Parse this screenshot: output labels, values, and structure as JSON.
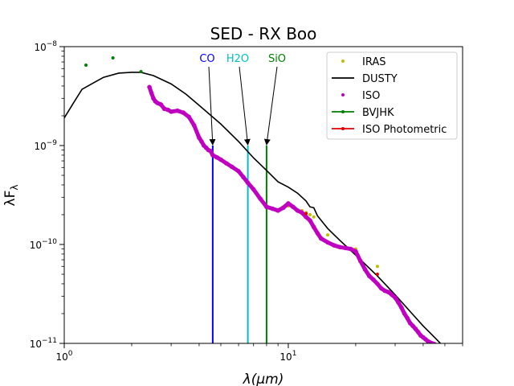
{
  "chart_data": {
    "type": "scatter",
    "title": "SED - RX Boo",
    "xlabel": "λ(μm)",
    "ylabel": "λF",
    "ylabel_sub": "λ",
    "xscale": "log",
    "yscale": "log",
    "xlim": [
      1,
      60
    ],
    "ylim": [
      1e-11,
      1e-08
    ],
    "x_ticks": [
      {
        "value": 1,
        "base": "10",
        "exp": "0"
      },
      {
        "value": 10,
        "base": "10",
        "exp": "1"
      }
    ],
    "y_ticks": [
      {
        "value": 1e-11,
        "base": "10",
        "exp": "−11"
      },
      {
        "value": 1e-10,
        "base": "10",
        "exp": "−10"
      },
      {
        "value": 1e-09,
        "base": "10",
        "exp": "−9"
      },
      {
        "value": 1e-08,
        "base": "10",
        "exp": "−8"
      }
    ],
    "grid": false,
    "legend_position": "top-right",
    "series": [
      {
        "name": "IRAS",
        "kind": "scatter",
        "color": "#bfbf00",
        "x": [
          9.5,
          10.0,
          11.5,
          12.0,
          12.5,
          13.0,
          15.0,
          18.0,
          20.0,
          25.0
        ],
        "y": [
          2.4e-10,
          2.45e-10,
          2.2e-10,
          2.1e-10,
          2e-10,
          1.9e-10,
          1.25e-10,
          9.5e-11,
          9e-11,
          6e-11
        ]
      },
      {
        "name": "DUSTY",
        "kind": "line",
        "color": "#000000",
        "x": [
          1.0,
          1.1,
          1.2,
          1.35,
          1.5,
          1.75,
          2.0,
          2.2,
          2.5,
          3.0,
          3.5,
          4.0,
          5.0,
          6.0,
          7.0,
          8.0,
          9.0,
          10.0,
          11.0,
          12.0,
          12.5,
          13.0,
          13.5,
          15.0,
          17.0,
          20.0,
          25.0,
          30.0,
          35.0,
          40.0,
          45.0,
          50.0
        ],
        "y": [
          1.9e-09,
          2.7e-09,
          3.7e-09,
          4.3e-09,
          4.9e-09,
          5.4e-09,
          5.5e-09,
          5.5e-09,
          5.1e-09,
          4.2e-09,
          3.3e-09,
          2.55e-09,
          1.65e-09,
          1.1e-09,
          7.5e-10,
          5.6e-10,
          4.3e-10,
          3.8e-10,
          3.3e-10,
          2.75e-10,
          2.4e-10,
          2.35e-10,
          1.95e-10,
          1.45e-10,
          1.1e-10,
          7.8e-11,
          4.8e-11,
          3.1e-11,
          2.1e-11,
          1.5e-11,
          1.15e-11,
          9e-12
        ]
      },
      {
        "name": "ISO",
        "kind": "scatter",
        "color": "#c000c0",
        "x": [
          2.4,
          2.45,
          2.5,
          2.55,
          2.6,
          2.7,
          2.8,
          2.9,
          3.0,
          3.2,
          3.4,
          3.6,
          3.8,
          4.0,
          4.1,
          4.2,
          4.3,
          4.4,
          4.5,
          4.6,
          4.8,
          5.0,
          5.3,
          5.6,
          6.0,
          6.3,
          6.6,
          7.0,
          7.5,
          8.0,
          8.5,
          9.0,
          9.5,
          10.0,
          10.5,
          11.0,
          11.5,
          12.0,
          12.5,
          13.0,
          13.5,
          14.0,
          15.0,
          16.0,
          17.0,
          18.0,
          19.0,
          20.0,
          21.0,
          22.0,
          23.0,
          24.0,
          25.0,
          26.0,
          27.0,
          28.0,
          29.0,
          30.0,
          31.0,
          32.0,
          33.0,
          34.0,
          35.0,
          36.0,
          37.0,
          38.0,
          39.0,
          40.0,
          41.0,
          42.0,
          43.0,
          44.0,
          45.0
        ],
        "y": [
          3.9e-09,
          3.4e-09,
          3e-09,
          2.8e-09,
          2.7e-09,
          2.6e-09,
          2.35e-09,
          2.3e-09,
          2.2e-09,
          2.25e-09,
          2.15e-09,
          1.95e-09,
          1.6e-09,
          1.2e-09,
          1.1e-09,
          1e-09,
          9.5e-10,
          9e-10,
          8.8e-10,
          8e-10,
          7.6e-10,
          7.2e-10,
          6.6e-10,
          6.1e-10,
          5.5e-10,
          4.8e-10,
          4.2e-10,
          3.6e-10,
          2.9e-10,
          2.4e-10,
          2.3e-10,
          2.2e-10,
          2.35e-10,
          2.6e-10,
          2.4e-10,
          2.2e-10,
          2.1e-10,
          1.9e-10,
          1.75e-10,
          1.5e-10,
          1.3e-10,
          1.15e-10,
          1.05e-10,
          9.8e-11,
          9.4e-11,
          9.2e-11,
          9e-11,
          8.5e-11,
          6.8e-11,
          5.6e-11,
          4.8e-11,
          4.4e-11,
          4e-11,
          3.6e-11,
          3.4e-11,
          3.3e-11,
          3.1e-11,
          2.9e-11,
          2.6e-11,
          2.3e-11,
          2e-11,
          1.8e-11,
          1.6e-11,
          1.5e-11,
          1.4e-11,
          1.3e-11,
          1.2e-11,
          1.15e-11,
          1.1e-11,
          1.05e-11,
          1.02e-11,
          1e-11,
          9.8e-12
        ]
      },
      {
        "name": "BVJHK",
        "kind": "scatter",
        "color": "#008000",
        "x": [
          1.25,
          1.65,
          2.2
        ],
        "y": [
          6.5e-09,
          7.7e-09,
          5.6e-09
        ]
      },
      {
        "name": "ISO Photometric",
        "kind": "scatter",
        "color": "#e00000",
        "x": [
          12.0,
          25.0
        ],
        "y": [
          2.05e-10,
          5e-11
        ]
      }
    ],
    "annotations": [
      {
        "label": "CO",
        "color": "#0000ff",
        "x": 4.6,
        "y_top": 1e-09,
        "y_bottom": 1e-11
      },
      {
        "label": "H2O",
        "color": "#00bfbf",
        "x": 6.6,
        "y_top": 1e-09,
        "y_bottom": 1e-11
      },
      {
        "label": "SiO",
        "color": "#008000",
        "x": 8.0,
        "y_top": 1e-09,
        "y_bottom": 1e-11
      }
    ]
  }
}
